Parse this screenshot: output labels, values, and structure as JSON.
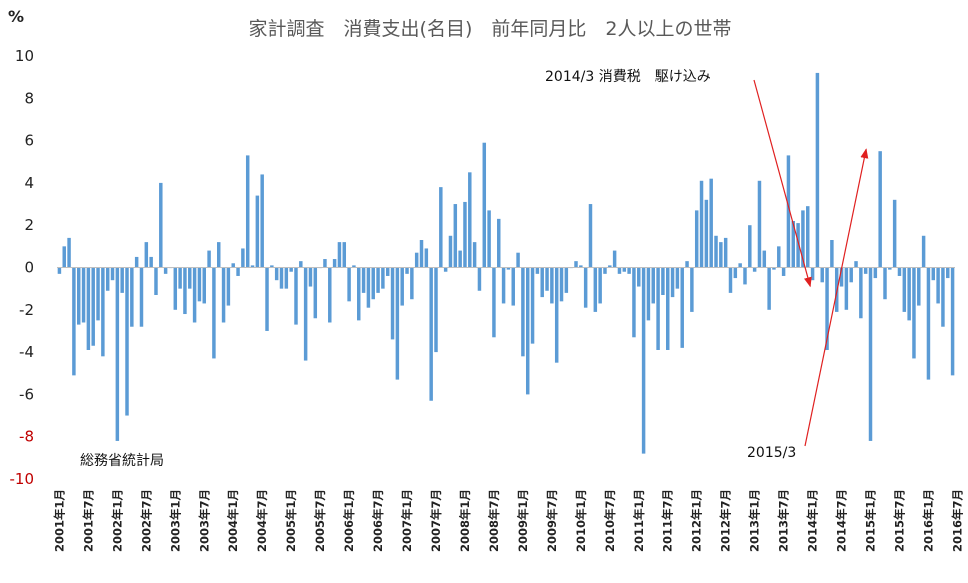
{
  "chart_data": {
    "type": "bar",
    "title": "家計調査　消費支出(名目)　前年同月比　2人以上の世帯",
    "ylabel": "%",
    "ylim": [
      -10,
      10
    ],
    "yticks": [
      "10",
      "8",
      "6",
      "4",
      "2",
      "0",
      "-2",
      "-4",
      "-6",
      "-8",
      "-10"
    ],
    "red_yticks": [
      "-8",
      "-10"
    ],
    "grid": false,
    "bar_color": "#5b9bd5",
    "arrow_color": "#e02020",
    "x_start": "2001年1月",
    "x_ticks": [
      "2001年1月",
      "2001年7月",
      "2002年1月",
      "2002年7月",
      "2003年1月",
      "2003年7月",
      "2004年1月",
      "2004年7月",
      "2005年1月",
      "2005年7月",
      "2006年1月",
      "2006年7月",
      "2007年1月",
      "2007年7月",
      "2008年1月",
      "2008年7月",
      "2009年1月",
      "2009年7月",
      "2010年1月",
      "2010年7月",
      "2011年1月",
      "2011年7月",
      "2012年1月",
      "2012年7月",
      "2013年1月",
      "2013年7月",
      "2014年1月",
      "2014年7月",
      "2015年1月",
      "2015年7月",
      "2016年1月",
      "2016年7月"
    ],
    "values": [
      -0.3,
      1.0,
      1.4,
      -5.1,
      -2.7,
      -2.6,
      -3.9,
      -3.7,
      -2.5,
      -4.2,
      -1.1,
      -0.6,
      -8.2,
      -1.2,
      -7.0,
      -2.8,
      0.5,
      -2.8,
      1.2,
      0.5,
      -1.3,
      4.0,
      -0.3,
      0.0,
      -2.0,
      -1.0,
      -2.2,
      -1.0,
      -2.6,
      -1.6,
      -1.7,
      0.8,
      -4.3,
      1.2,
      -2.6,
      -1.8,
      0.2,
      -0.4,
      0.9,
      5.3,
      0.1,
      3.4,
      4.4,
      -3.0,
      0.1,
      -0.6,
      -1.0,
      -1.0,
      -0.2,
      -2.7,
      0.3,
      -4.4,
      -0.9,
      -2.4,
      0.0,
      0.4,
      -2.6,
      0.4,
      1.2,
      1.2,
      -1.6,
      0.1,
      -2.5,
      -1.2,
      -1.9,
      -1.5,
      -1.2,
      -1.0,
      -0.4,
      -3.4,
      -5.3,
      -1.8,
      -0.3,
      -1.5,
      0.7,
      1.3,
      0.9,
      -6.3,
      -4.0,
      3.8,
      -0.2,
      1.5,
      3.0,
      0.8,
      3.1,
      4.5,
      1.2,
      -1.1,
      5.9,
      2.7,
      -3.3,
      2.3,
      -1.7,
      -0.1,
      -1.8,
      0.7,
      -4.2,
      -6.0,
      -3.6,
      -0.3,
      -1.4,
      -1.1,
      -1.7,
      -4.5,
      -1.6,
      -1.2,
      0.0,
      0.3,
      0.1,
      -1.9,
      3.0,
      -2.1,
      -1.7,
      -0.3,
      0.1,
      0.8,
      -0.3,
      -0.2,
      -0.3,
      -3.3,
      -0.9,
      -8.8,
      -2.5,
      -1.7,
      -3.9,
      -1.3,
      -3.9,
      -1.4,
      -1.0,
      -3.8,
      0.3,
      -2.1,
      2.7,
      4.1,
      3.2,
      4.2,
      1.5,
      1.2,
      1.4,
      -1.2,
      -0.5,
      0.2,
      -0.8,
      2.0,
      -0.2,
      4.1,
      0.8,
      -2.0,
      -0.1,
      1.0,
      -0.4,
      5.3,
      2.2,
      2.1,
      2.7,
      2.9,
      -0.6,
      9.2,
      -0.7,
      -3.9,
      1.3,
      -2.1,
      -0.9,
      -2.0,
      -0.7,
      0.3,
      -2.4,
      -0.3,
      -8.2,
      -0.5,
      5.5,
      -1.5,
      -0.1,
      3.2,
      -0.4,
      -2.1,
      -2.5,
      -4.3,
      -1.8,
      1.5,
      -5.3,
      -0.6,
      -1.7,
      -2.8,
      -0.5,
      -5.1
    ],
    "annotations": [
      {
        "text": "2014/3 消費税　駆け込み",
        "month_index": 158,
        "points_to": "bar-top"
      },
      {
        "text": "2015/3",
        "month_index": 170,
        "points_to": "bar-bottom"
      },
      {
        "text": "総務省統計局"
      }
    ]
  }
}
